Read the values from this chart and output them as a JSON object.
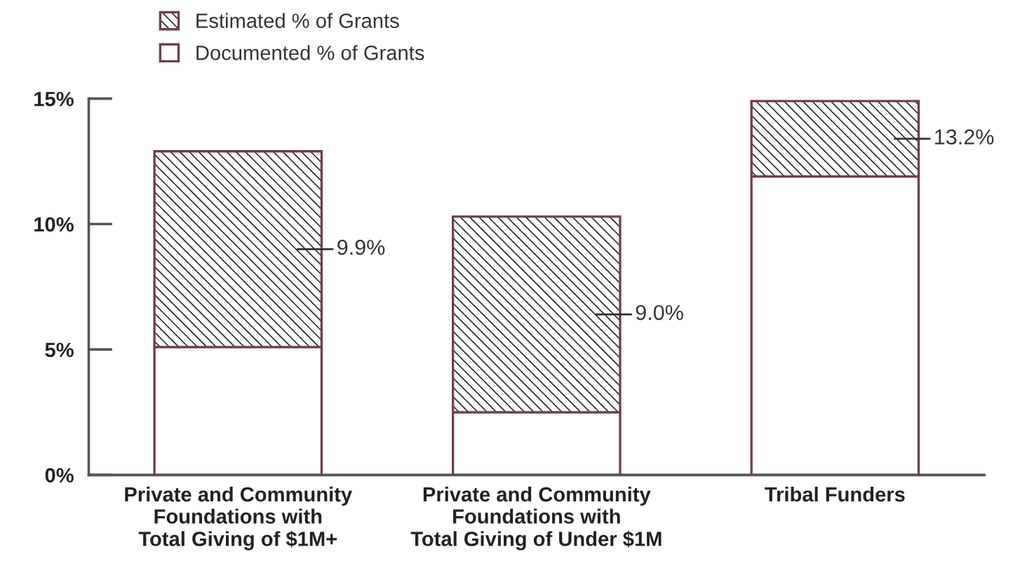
{
  "chart_data": {
    "type": "bar",
    "stacked": true,
    "categories": [
      "Private and Community\nFoundations with\nTotal Giving of $1M+",
      "Private and Community\nFoundations with\nTotal Giving of Under $1M",
      "Tribal Funders"
    ],
    "series": [
      {
        "name": "Documented % of Grants",
        "color": "#ffffff",
        "values": [
          5.1,
          2.5,
          11.9
        ]
      },
      {
        "name": "Estimated % of Grants",
        "color": "#6e3f50",
        "values": [
          7.8,
          7.8,
          3.0
        ]
      }
    ],
    "ylim": [
      0,
      15
    ],
    "yticks": [
      {
        "value": 0,
        "label": "0%"
      },
      {
        "value": 5,
        "label": "5%"
      },
      {
        "value": 10,
        "label": "10%"
      },
      {
        "value": 15,
        "label": "15%"
      }
    ],
    "annotations": [
      "9.9%",
      "9.0%",
      "13.2%"
    ],
    "legend": "top left",
    "grid": false
  }
}
